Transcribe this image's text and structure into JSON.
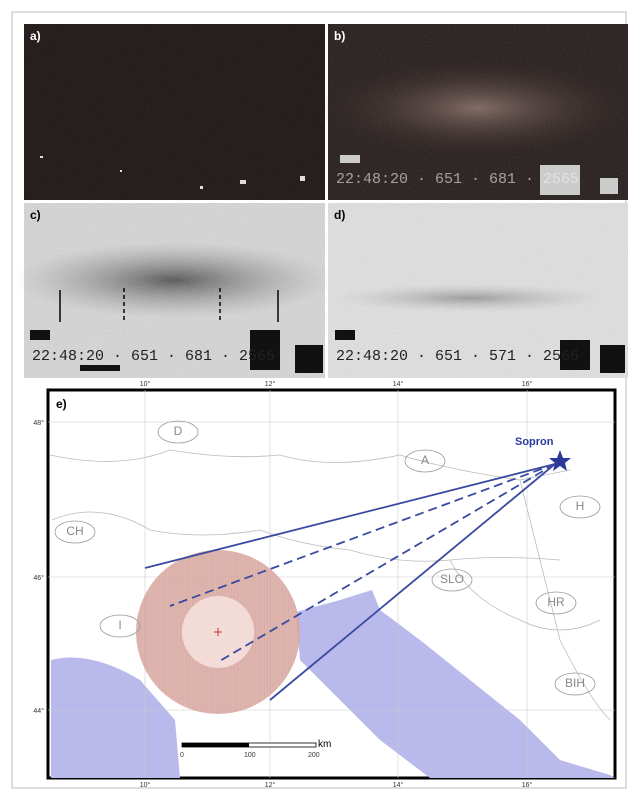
{
  "panels": [
    {
      "label": "a)"
    },
    {
      "label": "b)",
      "stamp": "22:48:20 · 651 · 681 · 2565"
    },
    {
      "label": "c)",
      "stamp": "22:48:20 · 651 · 681 · 2565"
    },
    {
      "label": "d)",
      "stamp": "22:48:20 · 651 · 571 · 2566"
    }
  ],
  "map": {
    "label": "e)",
    "lon_ticks": [
      "10°",
      "12°",
      "14°",
      "16°"
    ],
    "lat_ticks": [
      "48°",
      "46°",
      "44°"
    ],
    "countries": [
      "D",
      "A",
      "CH",
      "H",
      "SLO",
      "HR",
      "I",
      "BIH"
    ],
    "station": "Sopron",
    "scale": [
      "0",
      "100",
      "200",
      "km"
    ]
  }
}
